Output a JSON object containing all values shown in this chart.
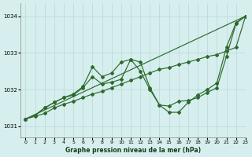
{
  "title": "Graphe pression niveau de la mer (hPa)",
  "xlim": [
    -0.5,
    23
  ],
  "ylim": [
    1030.7,
    1034.35
  ],
  "yticks": [
    1031,
    1032,
    1033,
    1034
  ],
  "xticks": [
    0,
    1,
    2,
    3,
    4,
    5,
    6,
    7,
    8,
    9,
    10,
    11,
    12,
    13,
    14,
    15,
    16,
    17,
    18,
    19,
    20,
    21,
    22,
    23
  ],
  "bg_color": "#d6eeee",
  "line_color": "#2d6a2d",
  "grid_color": "#b8d8d8",
  "line1": {
    "x": [
      0,
      23
    ],
    "y": [
      1031.2,
      1034.0
    ],
    "has_markers": false
  },
  "line2": {
    "x": [
      0,
      1,
      2,
      3,
      4,
      5,
      6,
      7,
      8,
      9,
      10,
      11,
      12,
      13,
      14,
      15,
      16,
      17,
      18,
      19,
      20,
      21,
      22,
      23
    ],
    "y": [
      1031.2,
      1031.27,
      1031.35,
      1031.5,
      1031.6,
      1031.68,
      1031.78,
      1031.88,
      1031.95,
      1032.05,
      1032.15,
      1032.25,
      1032.35,
      1032.45,
      1032.55,
      1032.6,
      1032.68,
      1032.75,
      1032.82,
      1032.9,
      1032.95,
      1033.05,
      1033.15,
      1034.0
    ],
    "has_markers": true
  },
  "line3": {
    "x": [
      0,
      1,
      2,
      3,
      4,
      5,
      6,
      7,
      8,
      9,
      10,
      11,
      12,
      13,
      14,
      15,
      16,
      17,
      18,
      19,
      20,
      21,
      22,
      23
    ],
    "y": [
      1031.2,
      1031.3,
      1031.5,
      1031.65,
      1031.78,
      1031.85,
      1032.05,
      1032.35,
      1032.15,
      1032.2,
      1032.28,
      1032.82,
      1032.75,
      1032.05,
      1031.58,
      1031.55,
      1031.68,
      1031.7,
      1031.78,
      1031.92,
      1032.05,
      1032.9,
      1033.8,
      1034.0
    ],
    "has_markers": true
  },
  "line4": {
    "x": [
      0,
      1,
      2,
      3,
      4,
      5,
      6,
      7,
      8,
      9,
      10,
      11,
      12,
      13,
      14,
      15,
      16,
      17,
      18,
      19,
      20,
      21,
      22,
      23
    ],
    "y": [
      1031.2,
      1031.3,
      1031.5,
      1031.65,
      1031.78,
      1031.88,
      1032.08,
      1032.62,
      1032.35,
      1032.45,
      1032.75,
      1032.82,
      1032.5,
      1032.0,
      1031.58,
      1031.38,
      1031.38,
      1031.65,
      1031.85,
      1032.0,
      1032.18,
      1033.15,
      1033.82,
      1034.0
    ],
    "has_markers": true
  }
}
